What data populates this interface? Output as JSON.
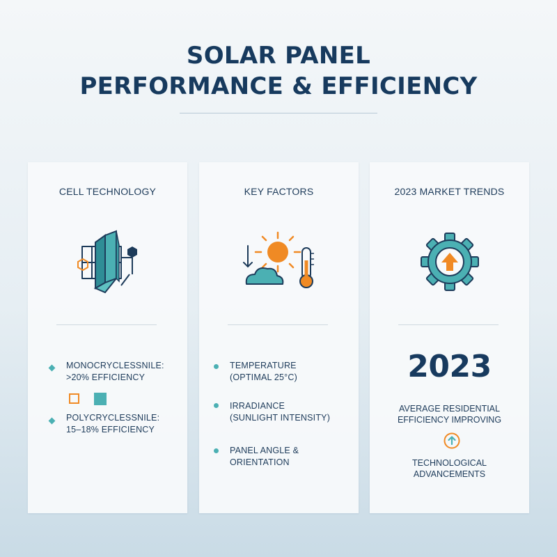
{
  "header": {
    "title_line1": "SOLAR PANEL",
    "title_line2": "PERFORMANCE & EFFICIENCY"
  },
  "cards": {
    "cell_technology": {
      "title": "CELL TECHNOLOGY",
      "icon": "crystal-panel-icon",
      "items": [
        {
          "line1": "MONOCRYCLESSNILE:",
          "line2": ">20% EFFICIENCY"
        },
        {
          "line1": "POLYCRYCLESSNILE:",
          "line2": "15–18% EFFICIENCY"
        }
      ]
    },
    "key_factors": {
      "title": "KEY FACTORS",
      "icon": "sun-cloud-thermometer-icon",
      "items": [
        {
          "line1": "TEMPERATURE",
          "line2": "(OPTIMAL 25°C)"
        },
        {
          "line1": "IRRADIANCE",
          "line2": "(SUNLIGHT INTENSITY)"
        },
        {
          "line1": "PANEL ANGLE & ORIENTATION",
          "line2": ""
        }
      ]
    },
    "market_trends": {
      "title": "2023 MARKET TRENDS",
      "icon": "gear-arrow-up-icon",
      "year": "2023",
      "caption_line1": "AVERAGE RESIDENTIAL",
      "caption_line2": "EFFICIENCY IMPROVING",
      "tech_line1": "TECHNOLOGICAL",
      "tech_line2": "ADVANCEMENTS"
    }
  },
  "colors": {
    "navy": "#173a5e",
    "teal": "#4bb0b3",
    "orange": "#f08a24",
    "background": "#e6eef3"
  }
}
